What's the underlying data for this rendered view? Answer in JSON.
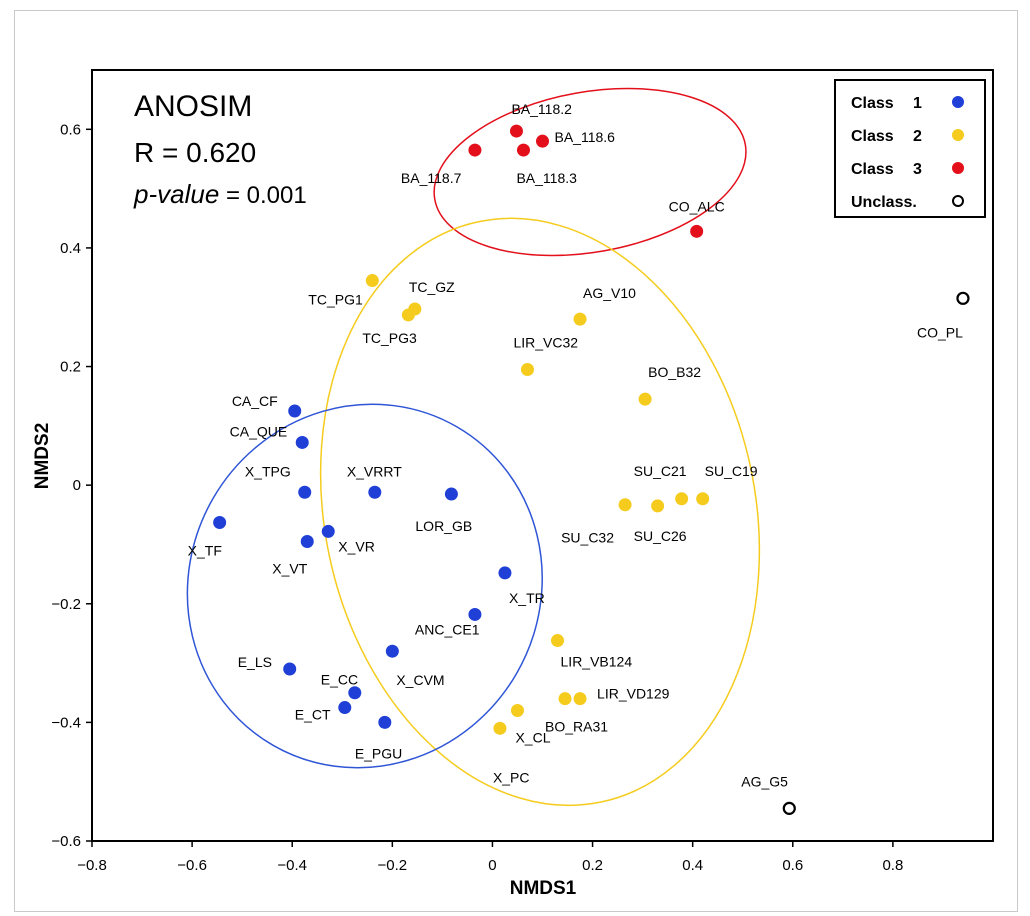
{
  "chart_data": {
    "type": "scatter",
    "xlabel": "NMDS1",
    "ylabel": "NMDS2",
    "xlim": [
      -0.8,
      1.0
    ],
    "ylim": [
      -0.6,
      0.7
    ],
    "x_ticks": [
      -0.8,
      -0.6,
      -0.4,
      -0.2,
      0,
      0.2,
      0.4,
      0.6,
      0.8
    ],
    "x_tick_labels": [
      "−0.8",
      "−0.6",
      "−0.4",
      "−0.2",
      "0",
      "0.2",
      "0.4",
      "0.6",
      "0.8"
    ],
    "y_ticks": [
      -0.6,
      -0.4,
      -0.2,
      0,
      0.2,
      0.4,
      0.6
    ],
    "y_tick_labels": [
      "−0.6",
      "−0.4",
      "−0.2",
      "0",
      "0.2",
      "0.4",
      "0.6"
    ],
    "grid": false,
    "legend_position": "top-right",
    "annotation": {
      "title": "ANOSIM",
      "r_text": "R = 0.620",
      "p_label": "p-value",
      "p_value_text": " = 0.001"
    },
    "series": [
      {
        "name": "Class  1",
        "legend_label": "Class",
        "legend_num": "1",
        "color": "#1f3fd6",
        "marker": "filled",
        "points": [
          {
            "label": "CA_CF",
            "x": -0.395,
            "y": 0.125
          },
          {
            "label": "CA_QUE",
            "x": -0.38,
            "y": 0.072
          },
          {
            "label": "X_TPG",
            "x": -0.375,
            "y": -0.012
          },
          {
            "label": "X_VRRT",
            "x": -0.235,
            "y": -0.012
          },
          {
            "label": "LOR_GB",
            "x": -0.082,
            "y": -0.015
          },
          {
            "label": "X_TF",
            "x": -0.545,
            "y": -0.063
          },
          {
            "label": "X_VR",
            "x": -0.328,
            "y": -0.078
          },
          {
            "label": "X_VT",
            "x": -0.37,
            "y": -0.095
          },
          {
            "label": "X_TR",
            "x": 0.025,
            "y": -0.148
          },
          {
            "label": "ANC_CE1",
            "x": -0.035,
            "y": -0.218
          },
          {
            "label": "X_CVM",
            "x": -0.2,
            "y": -0.28
          },
          {
            "label": "E_LS",
            "x": -0.405,
            "y": -0.31
          },
          {
            "label": "E_CC",
            "x": -0.275,
            "y": -0.35
          },
          {
            "label": "E_CT",
            "x": -0.295,
            "y": -0.375
          },
          {
            "label": "E_PGU",
            "x": -0.215,
            "y": -0.4
          }
        ]
      },
      {
        "name": "Class  2",
        "legend_label": "Class",
        "legend_num": "2",
        "color": "#f5cc1e",
        "marker": "filled",
        "points": [
          {
            "label": "TC_PG1",
            "x": -0.24,
            "y": 0.345
          },
          {
            "label": "TC_GZ",
            "x": -0.155,
            "y": 0.297
          },
          {
            "label": "TC_PG3",
            "x": -0.168,
            "y": 0.287
          },
          {
            "label": "AG_V10",
            "x": 0.175,
            "y": 0.28
          },
          {
            "label": "LIR_VC32",
            "x": 0.07,
            "y": 0.195
          },
          {
            "label": "BO_B32",
            "x": 0.305,
            "y": 0.145
          },
          {
            "label": "SU_C21",
            "x": 0.378,
            "y": -0.023
          },
          {
            "label": "SU_C19",
            "x": 0.42,
            "y": -0.023
          },
          {
            "label": "SU_C32",
            "x": 0.265,
            "y": -0.033
          },
          {
            "label": "SU_C26",
            "x": 0.33,
            "y": -0.035
          },
          {
            "label": "LIR_VB124",
            "x": 0.13,
            "y": -0.262
          },
          {
            "label": "LIR_VD129",
            "x": 0.175,
            "y": -0.36
          },
          {
            "label": "BO_RA31",
            "x": 0.145,
            "y": -0.36
          },
          {
            "label": "X_CL",
            "x": 0.05,
            "y": -0.38
          },
          {
            "label": "X_PC",
            "x": 0.015,
            "y": -0.41
          }
        ]
      },
      {
        "name": "Class  3",
        "legend_label": "Class",
        "legend_num": "3",
        "color": "#e3101b",
        "marker": "filled",
        "points": [
          {
            "label": "BA_118.2",
            "x": 0.048,
            "y": 0.597
          },
          {
            "label": "BA_118.6",
            "x": 0.1,
            "y": 0.58
          },
          {
            "label": "BA_118.3",
            "x": 0.062,
            "y": 0.565
          },
          {
            "label": "BA_118.7",
            "x": -0.035,
            "y": 0.565
          },
          {
            "label": "CO_ALC",
            "x": 0.408,
            "y": 0.428
          }
        ]
      },
      {
        "name": "Unclass.",
        "legend_label": "Unclass.",
        "legend_num": "",
        "color": "#000000",
        "marker": "hollow",
        "points": [
          {
            "label": "CO_PL",
            "x": 0.94,
            "y": 0.315
          },
          {
            "label": "AG_G5",
            "x": 0.593,
            "y": -0.545
          }
        ]
      }
    ],
    "ellipses": [
      {
        "name": "Class 3 ellipse",
        "color": "#e3101b",
        "cx": 0.195,
        "cy": 0.528,
        "rx": 0.315,
        "ry": 0.135,
        "angle_deg": 10
      },
      {
        "name": "Class 2 ellipse",
        "color": "#f5cc1e",
        "cx": 0.095,
        "cy": -0.045,
        "rx": 0.43,
        "ry": 0.5,
        "angle_deg": 12
      },
      {
        "name": "Class 1 ellipse",
        "color": "#2e55d6",
        "cx": -0.255,
        "cy": -0.17,
        "rx": 0.35,
        "ry": 0.31,
        "angle_deg": -30
      }
    ]
  }
}
